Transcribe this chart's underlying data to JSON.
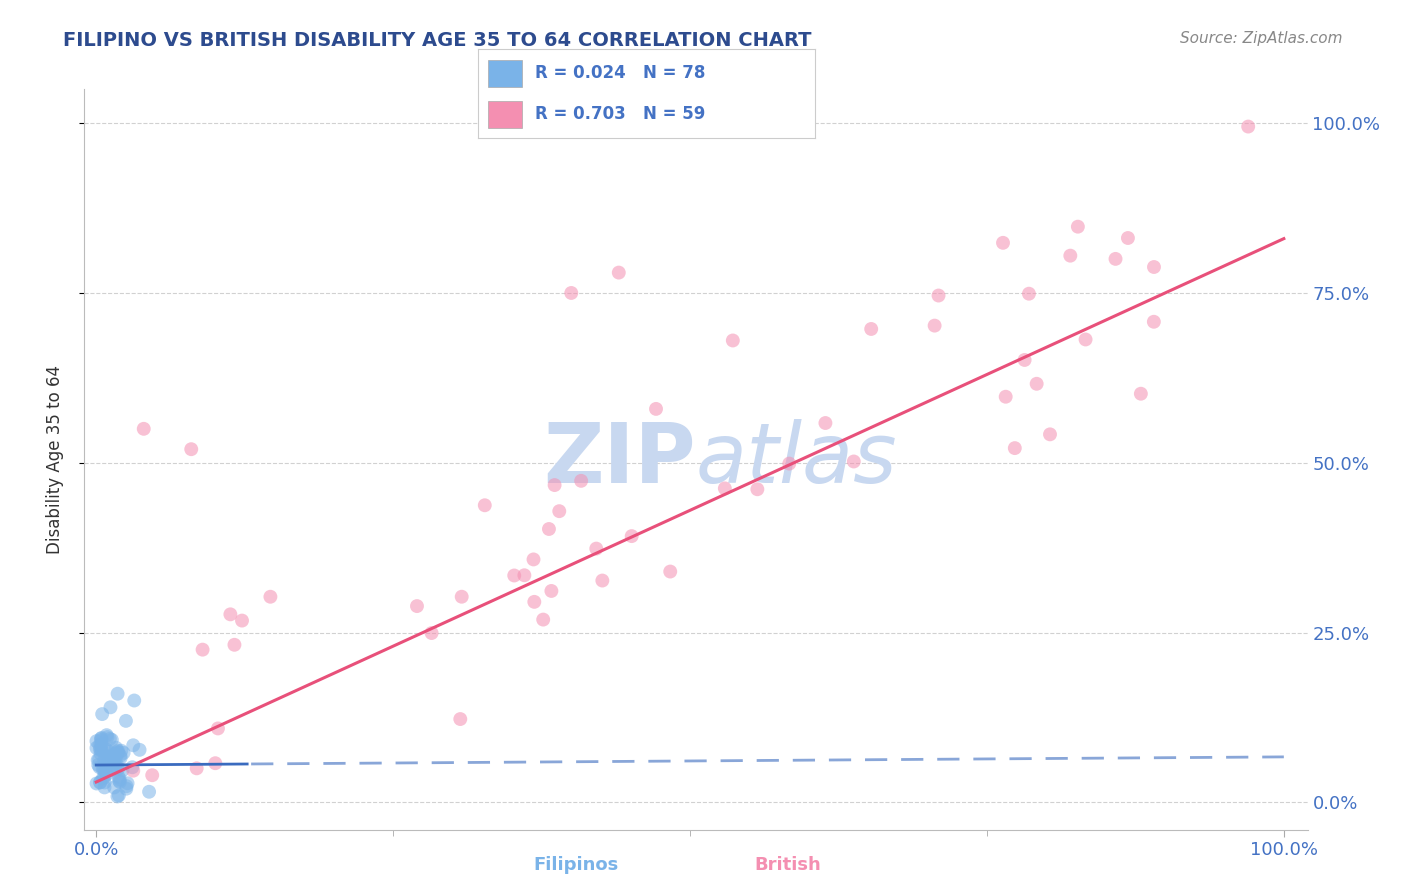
{
  "title": "FILIPINO VS BRITISH DISABILITY AGE 35 TO 64 CORRELATION CHART",
  "source": "Source: ZipAtlas.com",
  "ylabel": "Disability Age 35 to 64",
  "filipino_R": 0.024,
  "filipino_N": 78,
  "british_R": 0.703,
  "british_N": 59,
  "title_color": "#2d4b8e",
  "source_color": "#888888",
  "axis_label_color": "#333333",
  "tick_color": "#4472c4",
  "watermark_color": "#c8d8f0",
  "filipino_dot_color": "#7ab3e8",
  "filipino_dot_alpha": 0.55,
  "filipino_line_color": "#3a6bbf",
  "british_dot_color": "#f48fb1",
  "british_dot_alpha": 0.55,
  "british_line_color": "#e8507a",
  "dot_size": 100,
  "grid_color": "#cccccc",
  "background_color": "#ffffff",
  "ytick_labels": [
    "0.0%",
    "25.0%",
    "50.0%",
    "75.0%",
    "100.0%"
  ],
  "ytick_positions": [
    0.0,
    0.25,
    0.5,
    0.75,
    1.0
  ]
}
